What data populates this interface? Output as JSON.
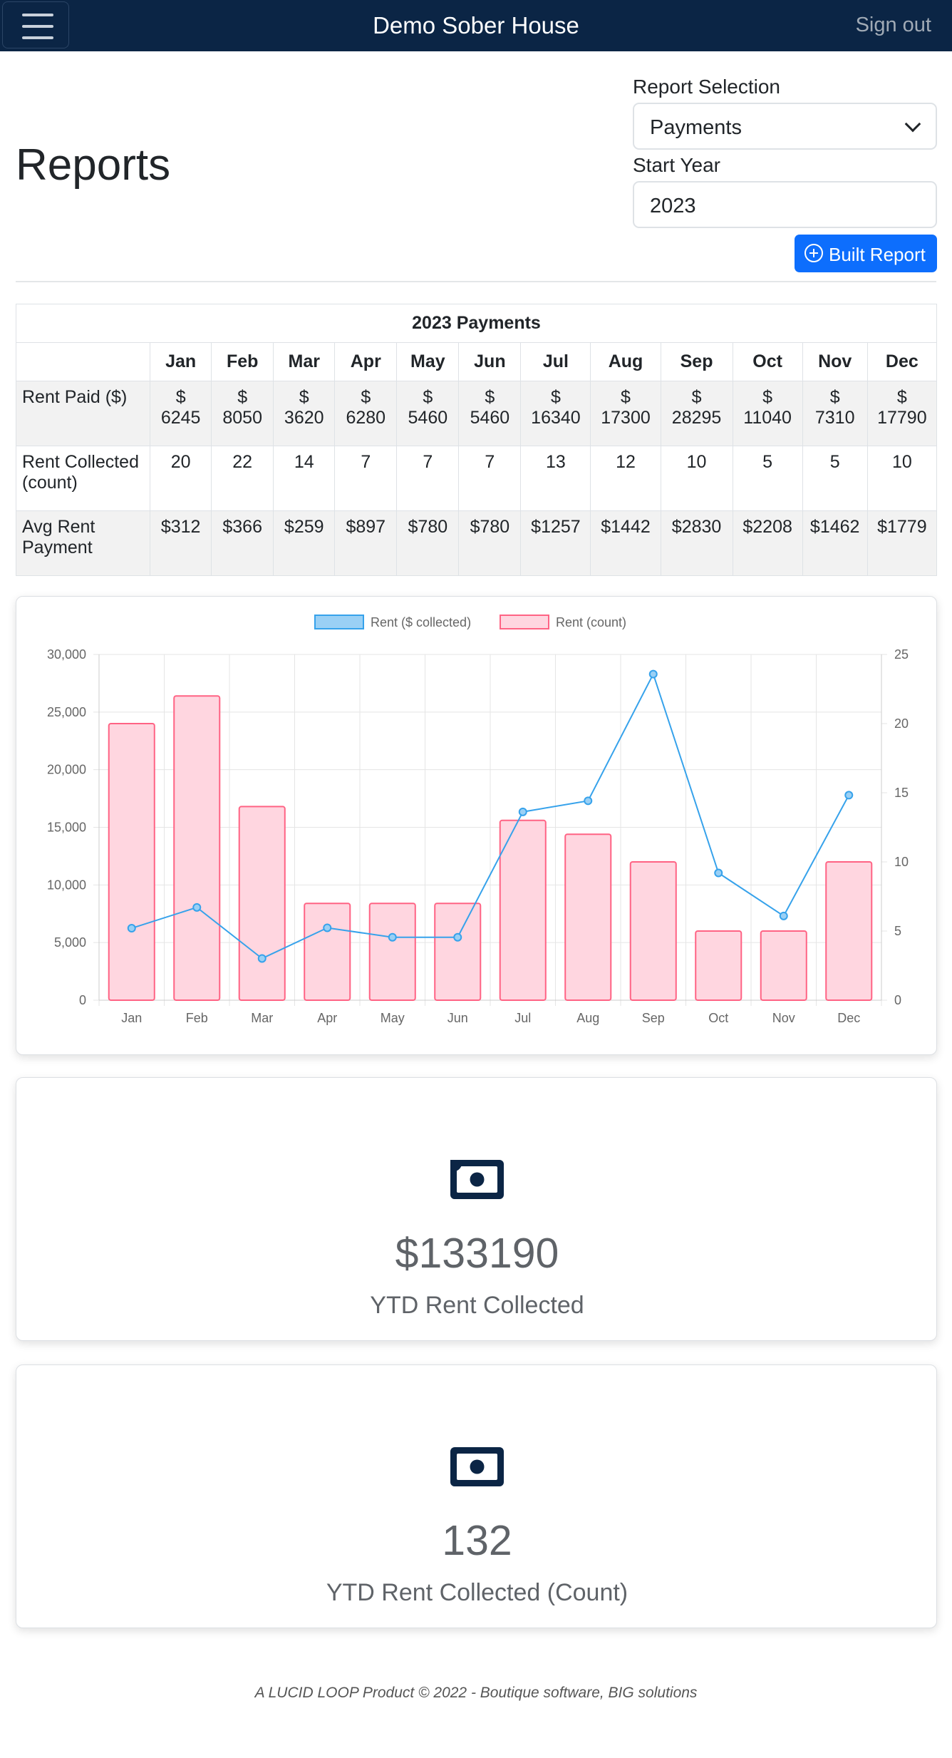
{
  "nav": {
    "brand": "Demo Sober House",
    "signout": "Sign out"
  },
  "page": {
    "title": "Reports"
  },
  "form": {
    "report_label": "Report Selection",
    "report_value": "Payments",
    "year_label": "Start Year",
    "year_value": "2023",
    "build_button": "Built Report"
  },
  "table": {
    "title": "2023 Payments",
    "months": [
      "Jan",
      "Feb",
      "Mar",
      "Apr",
      "May",
      "Jun",
      "Jul",
      "Aug",
      "Sep",
      "Oct",
      "Nov",
      "Dec"
    ],
    "rows": [
      {
        "label": "Rent Paid ($)",
        "prefix": "$",
        "values": [
          "6245",
          "8050",
          "3620",
          "6280",
          "5460",
          "5460",
          "16340",
          "17300",
          "28295",
          "11040",
          "7310",
          "17790"
        ]
      },
      {
        "label": "Rent Collected (count)",
        "values": [
          "20",
          "22",
          "14",
          "7",
          "7",
          "7",
          "13",
          "12",
          "10",
          "5",
          "5",
          "10"
        ]
      },
      {
        "label": "Avg Rent Payment",
        "values": [
          "$312",
          "$366",
          "$259",
          "$897",
          "$780",
          "$780",
          "$1257",
          "$1442",
          "$2830",
          "$2208",
          "$1462",
          "$1779"
        ]
      }
    ]
  },
  "chart_data": {
    "type": "bar",
    "categories": [
      "Jan",
      "Feb",
      "Mar",
      "Apr",
      "May",
      "Jun",
      "Jul",
      "Aug",
      "Sep",
      "Oct",
      "Nov",
      "Dec"
    ],
    "series": [
      {
        "name": "Rent ($ collected)",
        "type": "line",
        "axis": "left",
        "color": "#36a2eb",
        "fill": "#9ad0f5",
        "values": [
          6245,
          8050,
          3620,
          6280,
          5460,
          5460,
          16340,
          17300,
          28295,
          11040,
          7310,
          17790
        ]
      },
      {
        "name": "Rent (count)",
        "type": "bar",
        "axis": "right",
        "color": "#ff6384",
        "fill": "#ffd6e0",
        "values": [
          20,
          22,
          14,
          7,
          7,
          7,
          13,
          12,
          10,
          5,
          5,
          10
        ]
      }
    ],
    "y_left": {
      "min": 0,
      "max": 30000,
      "ticks": [
        "0",
        "5,000",
        "10,000",
        "15,000",
        "20,000",
        "25,000",
        "30,000"
      ]
    },
    "y_right": {
      "min": 0,
      "max": 25,
      "ticks": [
        "0",
        "5",
        "10",
        "15",
        "20",
        "25"
      ]
    },
    "legend": "top",
    "grid": true
  },
  "stats": [
    {
      "icon": "money-bill-icon",
      "value": "$133190",
      "label": "YTD Rent Collected"
    },
    {
      "icon": "money-bill-icon",
      "value": "132",
      "label": "YTD Rent Collected (Count)"
    }
  ],
  "footer": {
    "text": "A LUCID LOOP Product © 2022 - Boutique software, BIG solutions"
  },
  "colors": {
    "navbar": "#0b2545",
    "primary": "#0d6efd",
    "icon": "#0b2545"
  }
}
